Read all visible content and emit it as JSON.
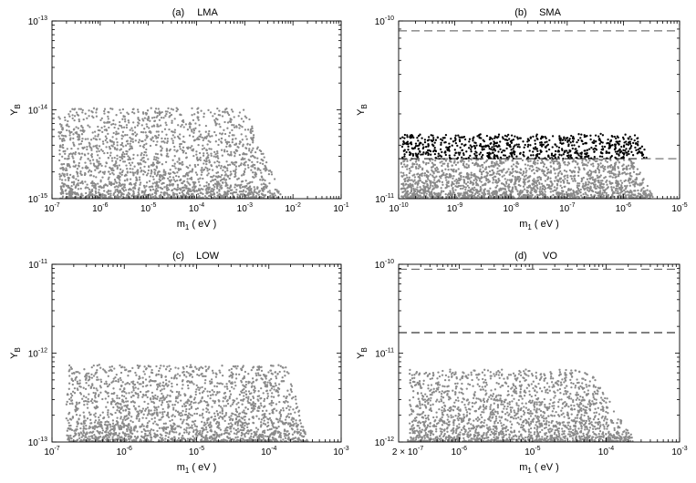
{
  "chart_data": [
    {
      "type": "scatter",
      "panel_label": "(a)",
      "title": "LMA",
      "xlabel": "m",
      "xlabel_sub": "1",
      "xlabel_unit": " ( eV )",
      "ylabel": "Y",
      "ylabel_sub": "B",
      "xscale": "log",
      "yscale": "log",
      "xlim": [
        1e-07,
        0.1
      ],
      "ylim": [
        1e-15,
        1e-13
      ],
      "xticks": [
        {
          "exp": "-7",
          "value": 1e-07
        },
        {
          "exp": "-6",
          "value": 1e-06
        },
        {
          "exp": "-5",
          "value": 1e-05
        },
        {
          "exp": "-4",
          "value": 0.0001
        },
        {
          "exp": "-3",
          "value": 0.001
        },
        {
          "exp": "-2",
          "value": 0.01
        },
        {
          "exp": "-1",
          "value": 0.1
        }
      ],
      "yticks": [
        {
          "exp": "-15",
          "value": 1e-15
        },
        {
          "exp": "-14",
          "value": 1e-14
        },
        {
          "exp": "-13",
          "value": 1e-13
        }
      ],
      "hlines": [],
      "series": [
        {
          "color": "#8a8a8a",
          "x_range": [
            1.4e-07,
            0.006
          ],
          "y_range": [
            1e-15,
            1.05e-14
          ],
          "dropoff": [
            0.001,
            0.006
          ],
          "count": 2200,
          "low_bias": true
        }
      ]
    },
    {
      "type": "scatter",
      "panel_label": "(b)",
      "title": "SMA",
      "xlabel": "m",
      "xlabel_sub": "1",
      "xlabel_unit": " ( eV )",
      "ylabel": "Y",
      "ylabel_sub": "B",
      "xscale": "log",
      "yscale": "log",
      "xlim": [
        1e-10,
        1e-05
      ],
      "ylim": [
        1e-11,
        1e-10
      ],
      "xticks": [
        {
          "exp": "-10",
          "value": 1e-10
        },
        {
          "exp": "-9",
          "value": 1e-09
        },
        {
          "exp": "-8",
          "value": 1e-08
        },
        {
          "exp": "-7",
          "value": 1e-07
        },
        {
          "exp": "-6",
          "value": 1e-06
        },
        {
          "exp": "-5",
          "value": 1e-05
        }
      ],
      "yticks": [
        {
          "exp": "-11",
          "value": 1e-11
        },
        {
          "exp": "-10",
          "value": 1e-10
        }
      ],
      "hlines": [
        {
          "y": 8.8e-11,
          "color": "#555555",
          "x_from": 1e-10,
          "x_to": 1e-05
        },
        {
          "y": 1.68e-11,
          "color": "#555555",
          "x_from": 2.2e-06,
          "x_to": 1e-05
        },
        {
          "y": 1.68e-11,
          "color": "#000000",
          "x_from": 1e-10,
          "x_to": 2.2e-06
        }
      ],
      "series": [
        {
          "color": "#000000",
          "x_range": [
            1.1e-10,
            2.6e-06
          ],
          "y_range": [
            1.68e-11,
            2.3e-11
          ],
          "dropoff": [
            1.8e-06,
            2.8e-06
          ],
          "count": 700,
          "low_bias": false
        },
        {
          "color": "#8a8a8a",
          "x_range": [
            1.1e-10,
            3.3e-06
          ],
          "y_range": [
            1e-11,
            1.68e-11
          ],
          "dropoff": [
            1.5e-06,
            3.5e-06
          ],
          "count": 2000,
          "low_bias": true
        }
      ]
    },
    {
      "type": "scatter",
      "panel_label": "(c)",
      "title": "LOW",
      "xlabel": "m",
      "xlabel_sub": "1",
      "xlabel_unit": " ( eV )",
      "ylabel": "Y",
      "ylabel_sub": "B",
      "xscale": "log",
      "yscale": "log",
      "xlim": [
        1e-07,
        0.001
      ],
      "ylim": [
        1e-13,
        1e-11
      ],
      "xticks": [
        {
          "exp": "-7",
          "value": 1e-07
        },
        {
          "exp": "-6",
          "value": 1e-06
        },
        {
          "exp": "-5",
          "value": 1e-05
        },
        {
          "exp": "-4",
          "value": 0.0001
        },
        {
          "exp": "-3",
          "value": 0.001
        }
      ],
      "yticks": [
        {
          "exp": "-13",
          "value": 1e-13
        },
        {
          "exp": "-12",
          "value": 1e-12
        },
        {
          "exp": "-11",
          "value": 1e-11
        }
      ],
      "hlines": [],
      "series": [
        {
          "color": "#8a8a8a",
          "x_range": [
            1.6e-07,
            0.00035
          ],
          "y_range": [
            1e-13,
            7.3e-13
          ],
          "dropoff": [
            0.00018,
            0.00035
          ],
          "count": 2200,
          "low_bias": true
        }
      ]
    },
    {
      "type": "scatter",
      "panel_label": "(d)",
      "title": "VO",
      "xlabel": "m",
      "xlabel_sub": "1",
      "xlabel_unit": " ( eV )",
      "ylabel": "Y",
      "ylabel_sub": "B",
      "xscale": "log",
      "yscale": "log",
      "xlim": [
        1.5e-07,
        0.001
      ],
      "ylim": [
        1e-12,
        1e-10
      ],
      "xticks": [
        {
          "prefix": "2 × 10",
          "exp": "-7",
          "value": 2e-07
        },
        {
          "exp": "-6",
          "value": 1e-06
        },
        {
          "exp": "-5",
          "value": 1e-05
        },
        {
          "exp": "-4",
          "value": 0.0001
        },
        {
          "exp": "-3",
          "value": 0.001
        }
      ],
      "yticks": [
        {
          "exp": "-12",
          "value": 1e-12
        },
        {
          "exp": "-11",
          "value": 1e-11
        },
        {
          "exp": "-10",
          "value": 1e-10
        }
      ],
      "hlines": [
        {
          "y": 8.8e-11,
          "color": "#555555",
          "x_from": 1.5e-07,
          "x_to": 0.001
        },
        {
          "y": 1.7e-11,
          "color": "#000000",
          "x_from": 1.5e-07,
          "x_to": 0.001
        }
      ],
      "series": [
        {
          "color": "#8a8a8a",
          "x_range": [
            2.1e-07,
            0.00025
          ],
          "y_range": [
            1e-12,
            6.5e-12
          ],
          "dropoff": [
            6e-05,
            0.00025
          ],
          "count": 2000,
          "low_bias": true
        }
      ]
    }
  ]
}
